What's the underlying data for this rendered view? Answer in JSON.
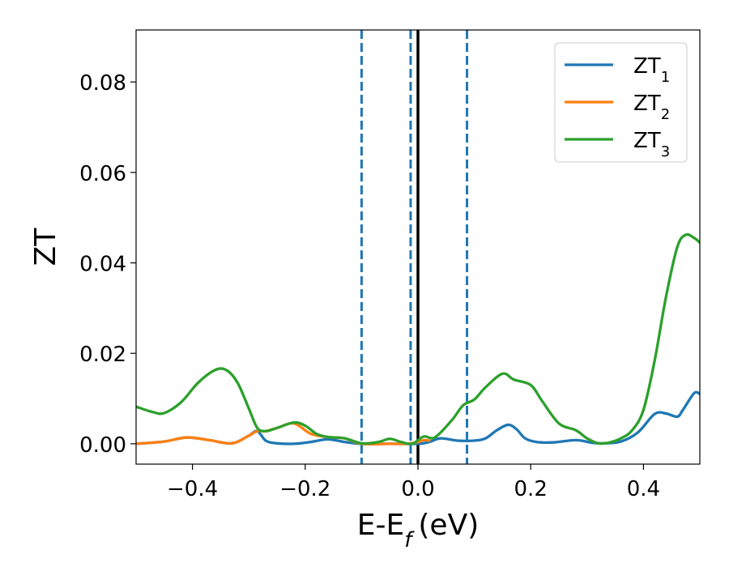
{
  "chart_data": {
    "type": "line",
    "xlabel": "E-E",
    "xlabel_subscript": "f",
    "xlabel_unit": "(eV)",
    "ylabel": "ZT",
    "xlim": [
      -0.5,
      0.5
    ],
    "ylim": [
      -0.0045,
      0.0915
    ],
    "x_ticks": [
      -0.4,
      -0.2,
      0.0,
      0.2,
      0.4
    ],
    "x_tick_labels": [
      "−0.4",
      "−0.2",
      "0.0",
      "0.2",
      "0.4"
    ],
    "y_ticks": [
      0.0,
      0.02,
      0.04,
      0.06,
      0.08
    ],
    "y_tick_labels": [
      "0.00",
      "0.02",
      "0.04",
      "0.06",
      "0.08"
    ],
    "grid": false,
    "legend_position": "top-right",
    "vertical_lines": [
      {
        "x": -0.1,
        "style": "dashed",
        "color": "#1f77b4"
      },
      {
        "x": -0.013,
        "style": "dashed",
        "color": "#1f77b4"
      },
      {
        "x": 0.0,
        "style": "solid",
        "color": "#000000"
      },
      {
        "x": 0.087,
        "style": "dashed",
        "color": "#1f77b4"
      }
    ],
    "series": [
      {
        "name": "ZT",
        "name_subscript": "1",
        "color": "#1f77b4",
        "points": [
          [
            -0.5,
            0.0
          ],
          [
            -0.45,
            0.0005
          ],
          [
            -0.41,
            0.0014
          ],
          [
            -0.37,
            0.0008
          ],
          [
            -0.33,
            0.0001
          ],
          [
            -0.3,
            0.0018
          ],
          [
            -0.285,
            0.0028
          ],
          [
            -0.27,
            0.0007
          ],
          [
            -0.25,
            0.0001
          ],
          [
            -0.22,
            0.0
          ],
          [
            -0.19,
            0.0004
          ],
          [
            -0.16,
            0.001
          ],
          [
            -0.13,
            0.0004
          ],
          [
            -0.1,
            0.0
          ],
          [
            -0.05,
            0.0
          ],
          [
            0.0,
            0.0
          ],
          [
            0.02,
            0.0004
          ],
          [
            0.04,
            0.0012
          ],
          [
            0.07,
            0.0007
          ],
          [
            0.1,
            0.0007
          ],
          [
            0.12,
            0.0012
          ],
          [
            0.14,
            0.003
          ],
          [
            0.16,
            0.0042
          ],
          [
            0.175,
            0.0032
          ],
          [
            0.19,
            0.0012
          ],
          [
            0.21,
            0.0004
          ],
          [
            0.24,
            0.0003
          ],
          [
            0.28,
            0.0008
          ],
          [
            0.31,
            0.0002
          ],
          [
            0.33,
            0.0001
          ],
          [
            0.36,
            0.0005
          ],
          [
            0.39,
            0.0025
          ],
          [
            0.42,
            0.0066
          ],
          [
            0.44,
            0.0067
          ],
          [
            0.46,
            0.006
          ],
          [
            0.47,
            0.0075
          ],
          [
            0.49,
            0.0112
          ],
          [
            0.5,
            0.011
          ]
        ]
      },
      {
        "name": "ZT",
        "name_subscript": "2",
        "color": "#ff7f0e",
        "points": [
          [
            -0.5,
            0.0
          ],
          [
            -0.45,
            0.0005
          ],
          [
            -0.41,
            0.0014
          ],
          [
            -0.37,
            0.0008
          ],
          [
            -0.33,
            0.0001
          ],
          [
            -0.3,
            0.0018
          ],
          [
            -0.285,
            0.0028
          ],
          [
            -0.27,
            0.0028
          ],
          [
            -0.25,
            0.0035
          ],
          [
            -0.22,
            0.0045
          ],
          [
            -0.19,
            0.0022
          ],
          [
            -0.16,
            0.0015
          ],
          [
            -0.13,
            0.0012
          ],
          [
            -0.1,
            0.0
          ],
          [
            -0.05,
            0.0
          ],
          [
            -0.02,
            0.0
          ],
          [
            0.0,
            0.0004
          ],
          [
            0.01,
            0.0008
          ],
          [
            0.02,
            0.0007
          ]
        ]
      },
      {
        "name": "ZT",
        "name_subscript": "3",
        "color": "#2ca02c",
        "points": [
          [
            -0.5,
            0.0082
          ],
          [
            -0.47,
            0.007
          ],
          [
            -0.45,
            0.0068
          ],
          [
            -0.42,
            0.0092
          ],
          [
            -0.39,
            0.0135
          ],
          [
            -0.36,
            0.0163
          ],
          [
            -0.34,
            0.0163
          ],
          [
            -0.32,
            0.0135
          ],
          [
            -0.3,
            0.0078
          ],
          [
            -0.285,
            0.0035
          ],
          [
            -0.27,
            0.0028
          ],
          [
            -0.25,
            0.0035
          ],
          [
            -0.22,
            0.0047
          ],
          [
            -0.2,
            0.004
          ],
          [
            -0.18,
            0.0022
          ],
          [
            -0.16,
            0.0015
          ],
          [
            -0.13,
            0.0012
          ],
          [
            -0.1,
            0.0001
          ],
          [
            -0.07,
            0.0004
          ],
          [
            -0.05,
            0.0011
          ],
          [
            -0.03,
            0.0004
          ],
          [
            -0.01,
            0.0
          ],
          [
            0.01,
            0.0016
          ],
          [
            0.03,
            0.0014
          ],
          [
            0.06,
            0.0052
          ],
          [
            0.08,
            0.0085
          ],
          [
            0.1,
            0.0098
          ],
          [
            0.12,
            0.0125
          ],
          [
            0.15,
            0.0155
          ],
          [
            0.17,
            0.0142
          ],
          [
            0.2,
            0.013
          ],
          [
            0.22,
            0.0095
          ],
          [
            0.25,
            0.0045
          ],
          [
            0.28,
            0.003
          ],
          [
            0.3,
            0.0012
          ],
          [
            0.32,
            0.0001
          ],
          [
            0.34,
            0.0003
          ],
          [
            0.36,
            0.0012
          ],
          [
            0.38,
            0.003
          ],
          [
            0.4,
            0.0075
          ],
          [
            0.42,
            0.0185
          ],
          [
            0.44,
            0.0325
          ],
          [
            0.46,
            0.0435
          ],
          [
            0.475,
            0.0462
          ],
          [
            0.49,
            0.0455
          ],
          [
            0.5,
            0.0445
          ]
        ]
      }
    ]
  }
}
